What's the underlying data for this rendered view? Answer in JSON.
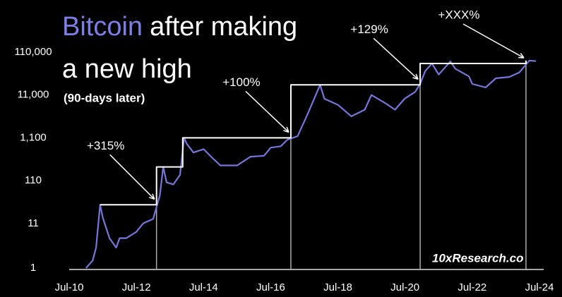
{
  "chart_data": {
    "type": "line",
    "title": "Bitcoin",
    "title_rest": "after making",
    "title_line2": "a new high",
    "subtitle": "(90-days later)",
    "source": "10xResearch.co",
    "log_y": true,
    "xlim": [
      2010.5,
      2024.5
    ],
    "xticks": [
      {
        "value": 2010.5,
        "label": "Jul-10"
      },
      {
        "value": 2012.5,
        "label": "Jul-12"
      },
      {
        "value": 2014.5,
        "label": "Jul-14"
      },
      {
        "value": 2016.5,
        "label": "Jul-16"
      },
      {
        "value": 2018.5,
        "label": "Jul-18"
      },
      {
        "value": 2020.5,
        "label": "Jul-20"
      },
      {
        "value": 2022.5,
        "label": "Jul-22"
      },
      {
        "value": 2024.5,
        "label": "Jul-24"
      }
    ],
    "ylim": [
      1,
      110000
    ],
    "yticks": [
      1,
      11,
      110,
      {
        "value": 1100,
        "label": "1,100"
      },
      {
        "value": 11000,
        "label": "11,000"
      },
      {
        "value": 110000,
        "label": "110,000"
      }
    ],
    "series": [
      {
        "color": "#7476dc",
        "x": [
          2011.0,
          2011.2,
          2011.3,
          2011.42,
          2011.5,
          2011.7,
          2011.9,
          2012.0,
          2012.2,
          2012.5,
          2012.7,
          2012.9,
          2013.0,
          2013.2,
          2013.3,
          2013.4,
          2013.6,
          2013.8,
          2013.92,
          2014.0,
          2014.2,
          2014.5,
          2014.8,
          2015.0,
          2015.5,
          2015.9,
          2016.3,
          2016.5,
          2016.8,
          2017.0,
          2017.3,
          2017.6,
          2017.97,
          2018.1,
          2018.5,
          2018.9,
          2019.3,
          2019.5,
          2019.9,
          2020.2,
          2020.5,
          2020.8,
          2020.95,
          2021.1,
          2021.3,
          2021.5,
          2021.85,
          2022.0,
          2022.4,
          2022.5,
          2022.9,
          2023.2,
          2023.6,
          2023.9,
          2024.2,
          2024.4
        ],
        "values": [
          1,
          1.5,
          3,
          30,
          15,
          5,
          3,
          5,
          5,
          7,
          11,
          13,
          14,
          50,
          230,
          100,
          90,
          150,
          1100,
          800,
          500,
          600,
          350,
          250,
          250,
          400,
          420,
          650,
          700,
          1000,
          1200,
          4000,
          19000,
          9000,
          6500,
          3500,
          5000,
          11000,
          7200,
          5000,
          9200,
          13000,
          20000,
          40000,
          60000,
          33000,
          67000,
          45000,
          30000,
          20000,
          16500,
          27000,
          29000,
          37000,
          70000,
          68000
        ]
      },
      {
        "color": "#ffffff",
        "x": [
          2011.42,
          2013.1,
          2013.1,
          2013.88,
          2013.88,
          2017.1,
          2017.1,
          2020.95,
          2020.95,
          2024.1,
          2024.1
        ],
        "values": [
          30,
          30,
          230,
          230,
          1100,
          1100,
          19000,
          19000,
          60000,
          60000,
          70000
        ]
      }
    ],
    "annotations": [
      {
        "text": "+315%",
        "x": 2013.1,
        "y": 30
      },
      {
        "text": "+100%",
        "x": 2017.1,
        "y": 1100
      },
      {
        "text": "+129%",
        "x": 2020.95,
        "y": 19000
      },
      {
        "text": "+XXX%",
        "x": 2024.1,
        "y": 60000
      }
    ]
  }
}
